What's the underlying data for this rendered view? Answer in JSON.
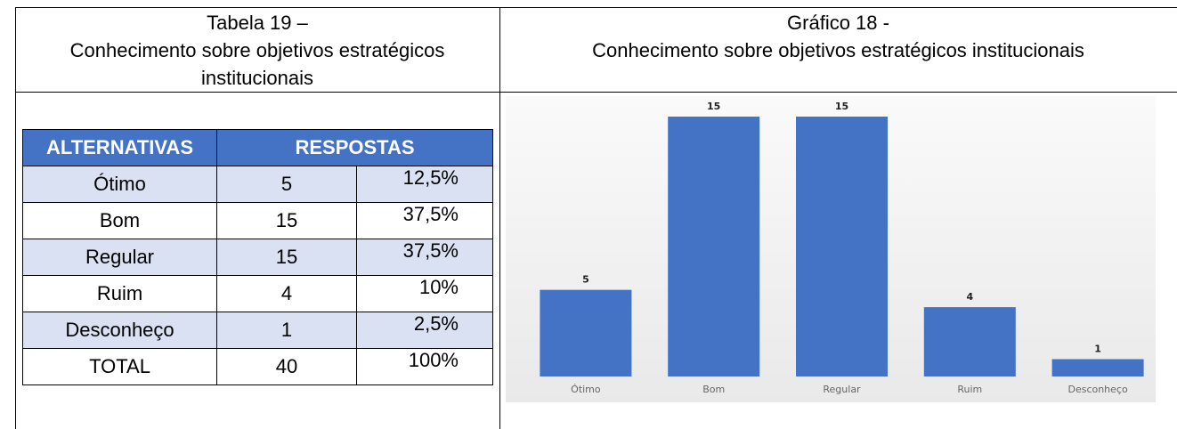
{
  "left_header": {
    "lines": [
      "Tabela 19 –",
      "Conhecimento sobre objetivos estratégicos",
      "institucionais"
    ]
  },
  "table": {
    "header": [
      "ALTERNATIVAS",
      "RESPOSTAS"
    ],
    "rows": [
      [
        "Ótimo",
        "5",
        "12,5%"
      ],
      [
        "Bom",
        "15",
        "37,5%"
      ],
      [
        "Regular",
        "15",
        "37,5%"
      ],
      [
        "Ruim",
        "4",
        "10%"
      ],
      [
        "Desconheço",
        "1",
        "2,5%"
      ],
      [
        "TOTAL",
        "40",
        "100%"
      ]
    ]
  },
  "chart_data": {
    "type": "bar",
    "title": [
      "Gráfico 18 -",
      "Conhecimento sobre objetivos estratégicos institucionais"
    ],
    "categories": [
      "Ótimo",
      "Bom",
      "Regular",
      "Ruim",
      "Desconheço"
    ],
    "values": [
      5,
      15,
      15,
      4,
      1
    ],
    "color": "#4472c4"
  }
}
